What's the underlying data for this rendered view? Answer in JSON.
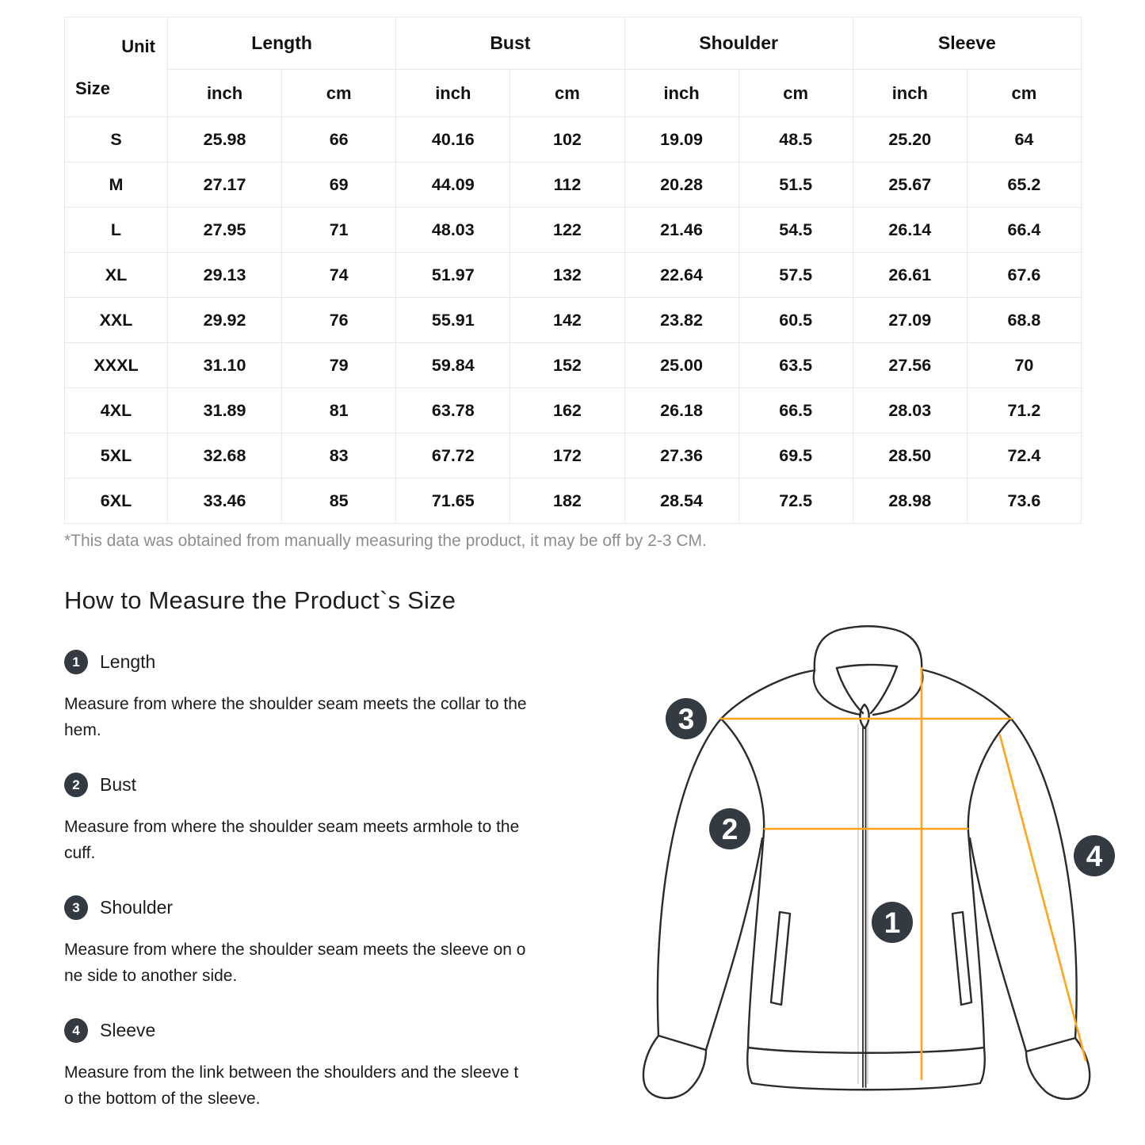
{
  "colors": {
    "accent_orange": "#FFA41C",
    "badge_dark": "#333A42",
    "outline_dark": "#2B2B2B",
    "table_border": "#E9E9EC",
    "footnote_gray": "#8E8E90",
    "text_dark": "#1A1A1A"
  },
  "size_chart": {
    "corner": {
      "top_right_label": "Unit",
      "bottom_left_label": "Size"
    },
    "groups": [
      "Length",
      "Bust",
      "Shoulder",
      "Sleeve"
    ],
    "unit_headers": [
      "inch",
      "cm",
      "inch",
      "cm",
      "inch",
      "cm",
      "inch",
      "cm"
    ],
    "rows": [
      {
        "size": "S",
        "values": [
          "25.98",
          "66",
          "40.16",
          "102",
          "19.09",
          "48.5",
          "25.20",
          "64"
        ]
      },
      {
        "size": "M",
        "values": [
          "27.17",
          "69",
          "44.09",
          "112",
          "20.28",
          "51.5",
          "25.67",
          "65.2"
        ]
      },
      {
        "size": "L",
        "values": [
          "27.95",
          "71",
          "48.03",
          "122",
          "21.46",
          "54.5",
          "26.14",
          "66.4"
        ]
      },
      {
        "size": "XL",
        "values": [
          "29.13",
          "74",
          "51.97",
          "132",
          "22.64",
          "57.5",
          "26.61",
          "67.6"
        ]
      },
      {
        "size": "XXL",
        "values": [
          "29.92",
          "76",
          "55.91",
          "142",
          "23.82",
          "60.5",
          "27.09",
          "68.8"
        ]
      },
      {
        "size": "XXXL",
        "values": [
          "31.10",
          "79",
          "59.84",
          "152",
          "25.00",
          "63.5",
          "27.56",
          "70"
        ]
      },
      {
        "size": "4XL",
        "values": [
          "31.89",
          "81",
          "63.78",
          "162",
          "26.18",
          "66.5",
          "28.03",
          "71.2"
        ]
      },
      {
        "size": "5XL",
        "values": [
          "32.68",
          "83",
          "67.72",
          "172",
          "27.36",
          "69.5",
          "28.50",
          "72.4"
        ]
      },
      {
        "size": "6XL",
        "values": [
          "33.46",
          "85",
          "71.65",
          "182",
          "28.54",
          "72.5",
          "28.98",
          "73.6"
        ]
      }
    ],
    "footnote": "*This data was obtained from manually measuring the product, it may be off by 2-3 CM."
  },
  "how_to_measure": {
    "heading": "How to Measure the Product`s Size",
    "steps": [
      {
        "number": "1",
        "title": "Length",
        "description": "Measure from where the shoulder seam meets the collar to the\nhem."
      },
      {
        "number": "2",
        "title": "Bust",
        "description": "Measure from where the shoulder seam meets armhole to the\ncuff."
      },
      {
        "number": "3",
        "title": "Shoulder",
        "description": "Measure from where the shoulder seam meets the sleeve on o\nne side to another side."
      },
      {
        "number": "4",
        "title": "Sleeve",
        "description": "Measure from the link between the shoulders and the sleeve t\no the bottom of the sleeve."
      }
    ],
    "diagram_badges": [
      "1",
      "2",
      "3",
      "4"
    ]
  }
}
